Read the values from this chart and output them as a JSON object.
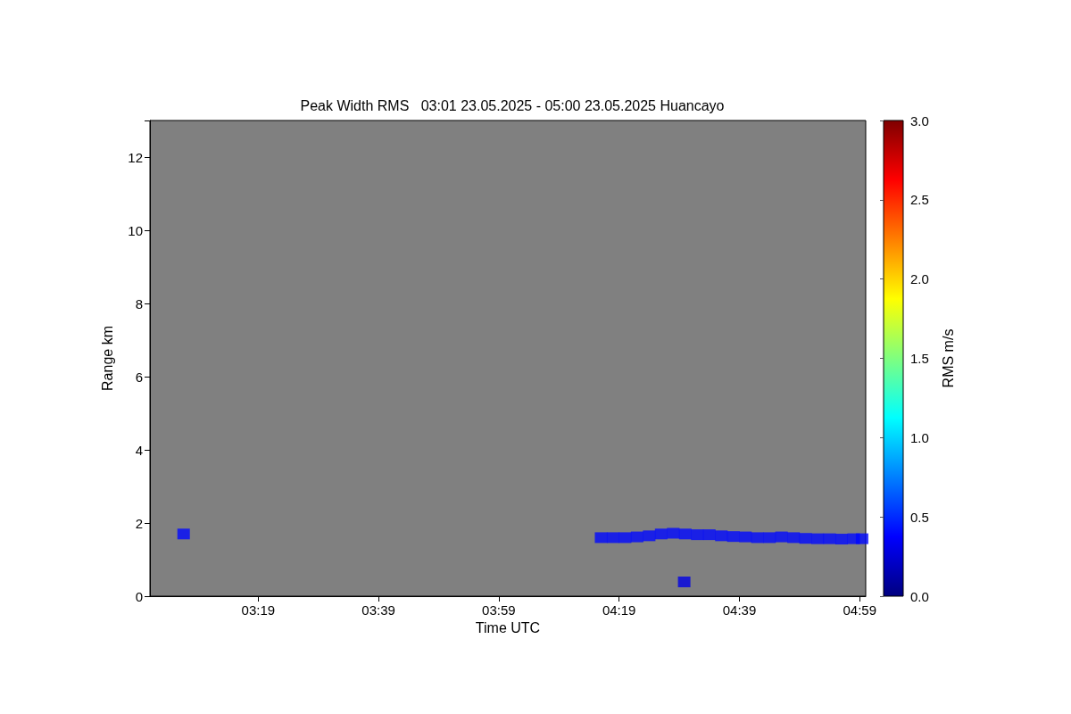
{
  "chart_data": {
    "type": "scatter",
    "title": "Peak Width RMS   03:01 23.05.2025 - 05:00 23.05.2025 Huancayo",
    "xlabel": "Time UTC",
    "ylabel": "Range km",
    "clabel": "RMS m/s",
    "x": [
      3.11,
      4.2667,
      4.3,
      4.3333,
      4.3667,
      4.4,
      4.4333,
      4.4667,
      4.497,
      4.5,
      4.5333,
      4.5667,
      4.6,
      4.6333,
      4.6667,
      4.7,
      4.7333,
      4.7667,
      4.8,
      4.8333,
      4.8667,
      4.9,
      4.9333,
      4.9667,
      4.99
    ],
    "values": [
      1.7,
      1.6,
      1.6,
      1.6,
      1.62,
      1.65,
      1.7,
      1.72,
      0.39,
      1.7,
      1.68,
      1.68,
      1.65,
      1.63,
      1.62,
      1.6,
      1.6,
      1.62,
      1.6,
      1.58,
      1.57,
      1.57,
      1.56,
      1.57,
      1.57
    ],
    "cvalues": [
      0.4,
      0.4,
      0.4,
      0.4,
      0.4,
      0.4,
      0.4,
      0.4,
      0.3,
      0.4,
      0.4,
      0.4,
      0.4,
      0.4,
      0.4,
      0.4,
      0.4,
      0.4,
      0.4,
      0.4,
      0.4,
      0.4,
      0.4,
      0.4,
      0.4
    ],
    "marker": "square",
    "xlim": [
      3.0167,
      5.0
    ],
    "xticks": [
      {
        "value": 3.3167,
        "label": "03:19"
      },
      {
        "value": 3.65,
        "label": "03:39"
      },
      {
        "value": 3.9833,
        "label": "03:59"
      },
      {
        "value": 4.3167,
        "label": "04:19"
      },
      {
        "value": 4.65,
        "label": "04:39"
      },
      {
        "value": 4.9833,
        "label": "04:59"
      }
    ],
    "ylim": [
      0,
      13
    ],
    "yticks": [
      0,
      2,
      4,
      6,
      8,
      10,
      12
    ],
    "clim": [
      0,
      3
    ],
    "cticks": [
      {
        "value": 0,
        "label": "0.0"
      },
      {
        "value": 0.5,
        "label": "0.5"
      },
      {
        "value": 1,
        "label": "1.0"
      },
      {
        "value": 1.5,
        "label": "1.5"
      },
      {
        "value": 2,
        "label": "2.0"
      },
      {
        "value": 2.5,
        "label": "2.5"
      },
      {
        "value": 3,
        "label": "3.0"
      }
    ],
    "grid": false
  }
}
